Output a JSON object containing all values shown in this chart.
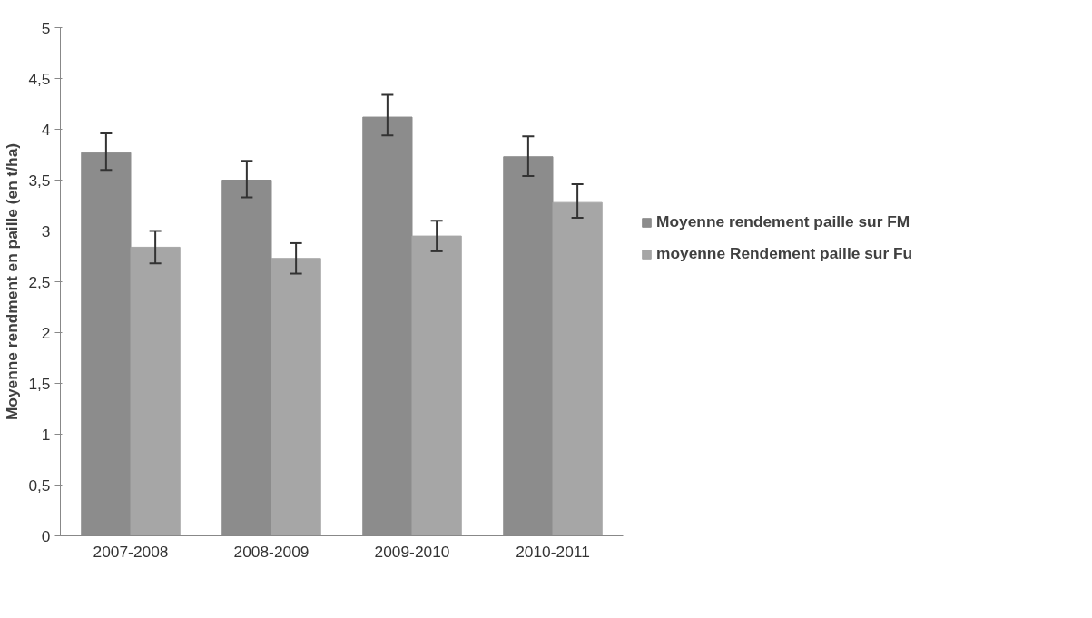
{
  "chart_data": {
    "type": "bar",
    "ylabel": "Moyenne rendment en paille (en t/ha)",
    "categories": [
      "2007-2008",
      "2008-2009",
      "2009-2010",
      "2010-2011"
    ],
    "series": [
      {
        "name": "Moyenne rendement paille sur FM",
        "color": "#8c8c8c",
        "values": [
          3.77,
          3.5,
          4.12,
          3.73
        ],
        "errors": [
          [
            3.6,
            3.96
          ],
          [
            3.33,
            3.69
          ],
          [
            3.94,
            4.34
          ],
          [
            3.54,
            3.93
          ]
        ]
      },
      {
        "name": "moyenne Rendement paille sur Fu",
        "color": "#a6a6a6",
        "values": [
          2.84,
          2.73,
          2.95,
          3.28
        ],
        "errors": [
          [
            2.68,
            3.0
          ],
          [
            2.58,
            2.88
          ],
          [
            2.8,
            3.1
          ],
          [
            3.13,
            3.46
          ]
        ]
      }
    ],
    "ylim": [
      0,
      5
    ],
    "yticks": [
      0,
      {
        "value": 0.5,
        "label": "0,5"
      },
      1,
      {
        "value": 1.5,
        "label": "1,5"
      },
      2,
      {
        "value": 2.5,
        "label": "2,5"
      },
      3,
      {
        "value": 3.5,
        "label": "3,5"
      },
      4,
      {
        "value": 4.5,
        "label": "4,5"
      },
      5
    ],
    "grid": false,
    "legend": "right"
  }
}
